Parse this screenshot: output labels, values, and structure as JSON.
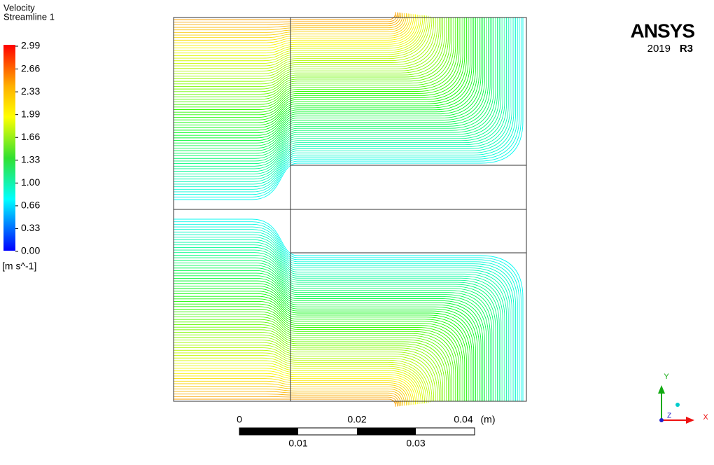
{
  "legend": {
    "title": "Velocity",
    "subtitle": "Streamline 1",
    "ticks": [
      "2.99",
      "2.66",
      "2.33",
      "1.99",
      "1.66",
      "1.33",
      "1.00",
      "0.66",
      "0.33",
      "0.00"
    ],
    "unit": "[m s^-1]"
  },
  "logo": {
    "brand": "ANSYS",
    "version": "2019",
    "release": "R3"
  },
  "scale_bar": {
    "top_labels": [
      "0",
      "0.02",
      "0.04"
    ],
    "unit": "(m)",
    "bottom_labels": [
      "0.01",
      "0.03"
    ]
  },
  "triad": {
    "y": "Y",
    "z": "Z",
    "x": "X"
  }
}
